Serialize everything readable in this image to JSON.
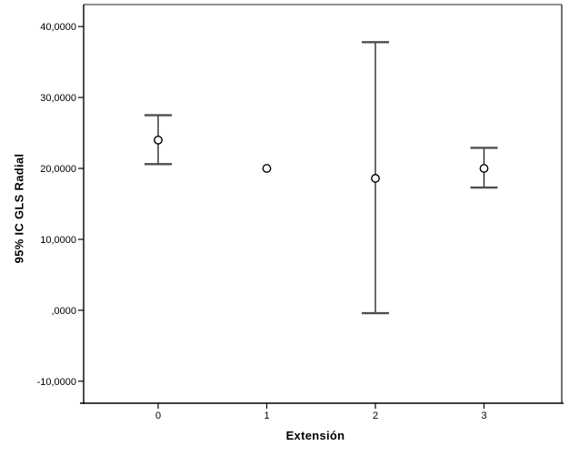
{
  "chart_data": {
    "type": "errorbar",
    "title": "",
    "xlabel": "Extensión",
    "ylabel": "95% IC GLS Radial",
    "categories": [
      "0",
      "1",
      "2",
      "3"
    ],
    "y_ticks": [
      {
        "value": -10,
        "label": "-10,0000"
      },
      {
        "value": 0,
        "label": ",0000"
      },
      {
        "value": 10,
        "label": "10,0000"
      },
      {
        "value": 20,
        "label": "20,0000"
      },
      {
        "value": 30,
        "label": "30,0000"
      },
      {
        "value": 40,
        "label": "40,0000"
      }
    ],
    "ylim": [
      -13.1,
      43.1
    ],
    "grid": false,
    "legend": null,
    "marker": "open-circle",
    "series": [
      {
        "name": "95% IC GLS Radial",
        "points": [
          {
            "category": "0",
            "mean": 24.0,
            "ci_low": 20.6,
            "ci_high": 27.5
          },
          {
            "category": "1",
            "mean": 20.0,
            "ci_low": null,
            "ci_high": null
          },
          {
            "category": "2",
            "mean": 18.6,
            "ci_low": -0.4,
            "ci_high": 37.8
          },
          {
            "category": "3",
            "mean": 20.0,
            "ci_low": 17.3,
            "ci_high": 22.9
          }
        ]
      }
    ]
  },
  "colors": {
    "background": "#ffffff",
    "axis": "#000000",
    "text": "#000000",
    "frame_top": "#8e8e8e",
    "frame_right": "#4c4c4c",
    "error_bar_line": "#1a1a1a",
    "error_bar_cap": "#4f4f4f",
    "marker_stroke": "#000000",
    "marker_fill": "#ffffff"
  }
}
